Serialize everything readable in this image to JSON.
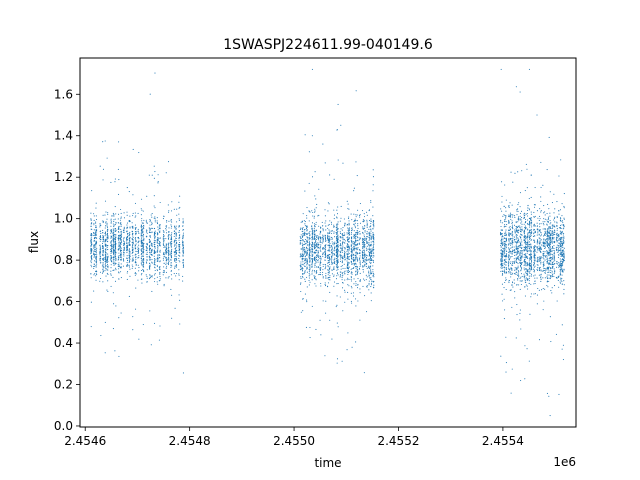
{
  "chart_data": {
    "type": "scatter",
    "title": "1SWASPJ224611.99-040149.6",
    "xlabel": "time",
    "ylabel": "flux",
    "x_offset_label": "1e6",
    "xlim": [
      2454590,
      2455540
    ],
    "ylim": [
      -0.005,
      1.775
    ],
    "x_ticks": [
      2454600,
      2454800,
      2455000,
      2455200,
      2455400
    ],
    "x_tick_labels": [
      "2.4546",
      "2.4548",
      "2.4550",
      "2.4552",
      "2.4554"
    ],
    "y_ticks": [
      0.0,
      0.2,
      0.4,
      0.6,
      0.8,
      1.0,
      1.2,
      1.4,
      1.6
    ],
    "y_tick_labels": [
      "0.0",
      "0.2",
      "0.4",
      "0.6",
      "0.8",
      "1.0",
      "1.2",
      "1.4",
      "1.6"
    ],
    "grid": false,
    "marker_color": "#1f77b4",
    "series": [
      {
        "observing_seasons": [
          {
            "start": 2454610,
            "end": 2454790,
            "median": 0.87,
            "spread": 0.13
          },
          {
            "start": 2455012,
            "end": 2455155,
            "median": 0.85,
            "spread": 0.14
          },
          {
            "start": 2455395,
            "end": 2455520,
            "median": 0.86,
            "spread": 0.16
          }
        ]
      }
    ]
  }
}
